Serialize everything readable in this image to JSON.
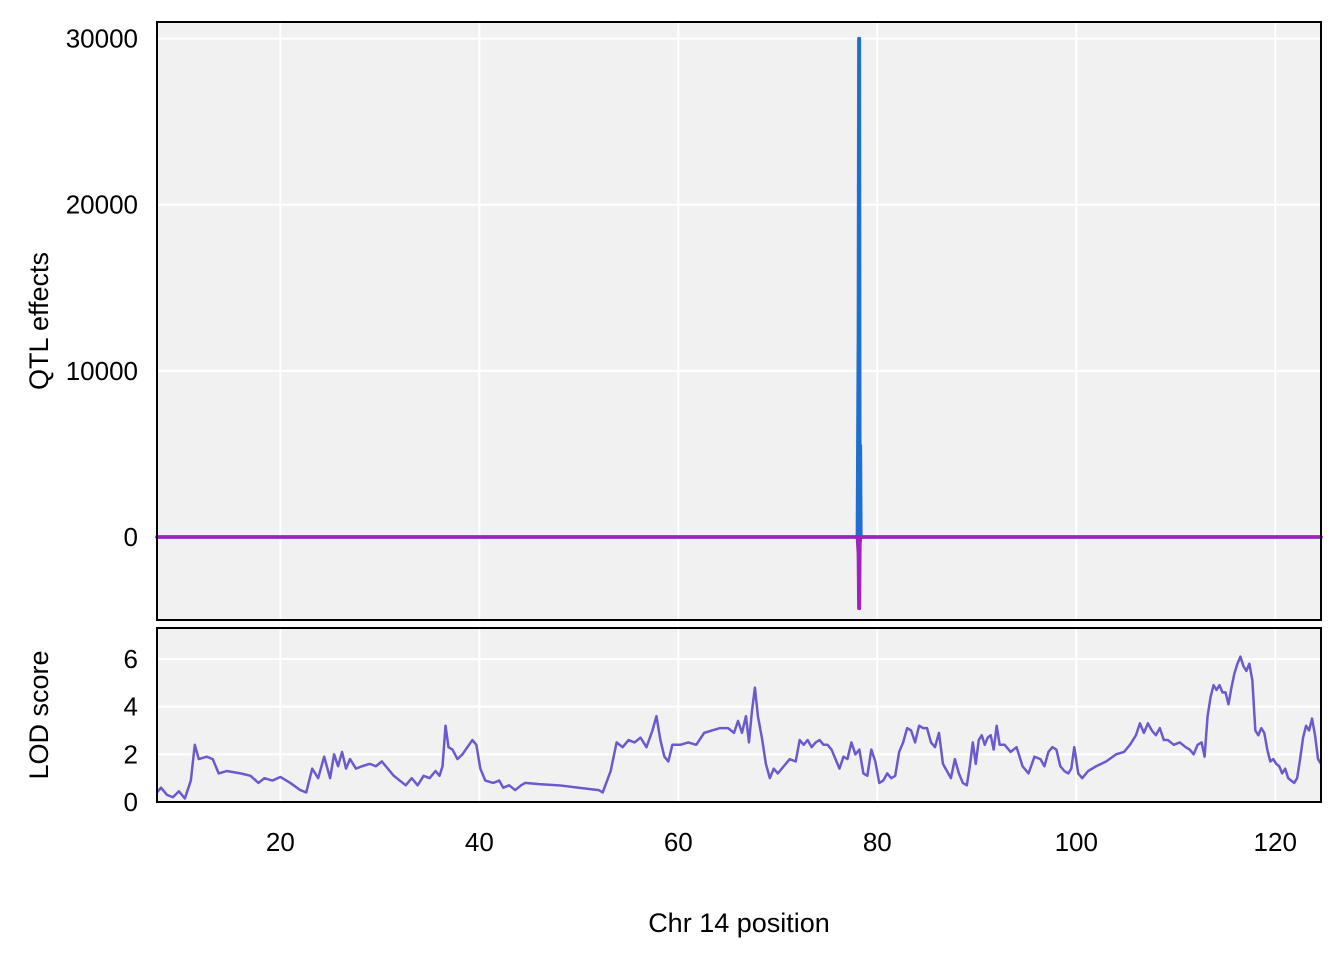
{
  "chart_data": [
    {
      "type": "line",
      "panel": "top",
      "ylabel": "QTL effects",
      "ylim": [
        -5000,
        31000
      ],
      "xlim": [
        7.6,
        124.6
      ],
      "yticks": [
        0,
        10000,
        20000,
        30000
      ],
      "grid": true,
      "series": [
        {
          "color": "#1e6fd0",
          "points": [
            [
              7.6,
              0
            ],
            [
              78.0,
              0
            ],
            [
              78.1,
              12000
            ],
            [
              78.15,
              30000
            ],
            [
              78.2,
              30000
            ],
            [
              78.25,
              0
            ],
            [
              78.3,
              5500
            ],
            [
              78.35,
              0
            ],
            [
              124.6,
              0
            ]
          ]
        },
        {
          "color": "#a020c0",
          "points": [
            [
              7.6,
              0
            ],
            [
              78.0,
              0
            ],
            [
              78.1,
              -1000
            ],
            [
              78.15,
              -4300
            ],
            [
              78.2,
              -4300
            ],
            [
              78.25,
              -500
            ],
            [
              78.3,
              0
            ],
            [
              124.6,
              0
            ]
          ]
        }
      ]
    },
    {
      "type": "line",
      "panel": "bottom",
      "xlabel": "Chr 14 position",
      "ylabel": "LOD score",
      "xlim": [
        7.6,
        124.6
      ],
      "ylim": [
        0,
        7.3
      ],
      "xticks": [
        20,
        40,
        60,
        80,
        100,
        120
      ],
      "yticks": [
        0,
        2,
        4,
        6
      ],
      "grid": true,
      "series": [
        {
          "color": "#6a5acd",
          "points": [
            [
              7.6,
              0.4
            ],
            [
              8.0,
              0.6
            ],
            [
              8.6,
              0.3
            ],
            [
              9.2,
              0.2
            ],
            [
              9.8,
              0.45
            ],
            [
              10.4,
              0.15
            ],
            [
              11.0,
              0.9
            ],
            [
              11.4,
              2.4
            ],
            [
              11.8,
              1.8
            ],
            [
              12.6,
              1.9
            ],
            [
              13.2,
              1.8
            ],
            [
              13.8,
              1.2
            ],
            [
              14.6,
              1.3
            ],
            [
              16.0,
              1.2
            ],
            [
              17.0,
              1.1
            ],
            [
              17.8,
              0.8
            ],
            [
              18.4,
              1.0
            ],
            [
              19.2,
              0.9
            ],
            [
              20.0,
              1.05
            ],
            [
              21.0,
              0.8
            ],
            [
              22.0,
              0.5
            ],
            [
              22.6,
              0.4
            ],
            [
              23.2,
              1.4
            ],
            [
              23.8,
              1.0
            ],
            [
              24.4,
              1.9
            ],
            [
              25.0,
              1.0
            ],
            [
              25.4,
              2.0
            ],
            [
              25.8,
              1.5
            ],
            [
              26.2,
              2.1
            ],
            [
              26.6,
              1.4
            ],
            [
              27.0,
              1.8
            ],
            [
              27.6,
              1.4
            ],
            [
              28.2,
              1.5
            ],
            [
              29.0,
              1.6
            ],
            [
              29.6,
              1.5
            ],
            [
              30.2,
              1.7
            ],
            [
              30.8,
              1.4
            ],
            [
              31.4,
              1.1
            ],
            [
              32.0,
              0.9
            ],
            [
              32.6,
              0.7
            ],
            [
              33.2,
              1.0
            ],
            [
              33.8,
              0.7
            ],
            [
              34.4,
              1.1
            ],
            [
              35.0,
              1.0
            ],
            [
              35.6,
              1.3
            ],
            [
              36.0,
              1.1
            ],
            [
              36.3,
              1.5
            ],
            [
              36.6,
              3.2
            ],
            [
              36.9,
              2.3
            ],
            [
              37.3,
              2.2
            ],
            [
              37.8,
              1.8
            ],
            [
              38.3,
              2.0
            ],
            [
              38.8,
              2.3
            ],
            [
              39.3,
              2.6
            ],
            [
              39.7,
              2.4
            ],
            [
              40.1,
              1.4
            ],
            [
              40.6,
              0.9
            ],
            [
              41.4,
              0.8
            ],
            [
              42.0,
              0.9
            ],
            [
              42.4,
              0.6
            ],
            [
              43.0,
              0.7
            ],
            [
              43.6,
              0.5
            ],
            [
              44.2,
              0.7
            ],
            [
              44.6,
              0.8
            ],
            [
              46.0,
              0.75
            ],
            [
              48.0,
              0.7
            ],
            [
              50.0,
              0.6
            ],
            [
              52.0,
              0.5
            ],
            [
              52.4,
              0.4
            ],
            [
              53.2,
              1.3
            ],
            [
              53.8,
              2.5
            ],
            [
              54.4,
              2.3
            ],
            [
              55.0,
              2.6
            ],
            [
              55.6,
              2.5
            ],
            [
              56.2,
              2.7
            ],
            [
              56.8,
              2.3
            ],
            [
              57.4,
              3.0
            ],
            [
              57.8,
              3.6
            ],
            [
              58.2,
              2.6
            ],
            [
              58.6,
              1.9
            ],
            [
              59.0,
              1.7
            ],
            [
              59.4,
              2.4
            ],
            [
              60.2,
              2.4
            ],
            [
              61.0,
              2.5
            ],
            [
              61.8,
              2.4
            ],
            [
              62.6,
              2.9
            ],
            [
              63.4,
              3.0
            ],
            [
              64.2,
              3.1
            ],
            [
              65.0,
              3.1
            ],
            [
              65.6,
              2.9
            ],
            [
              66.0,
              3.4
            ],
            [
              66.4,
              2.9
            ],
            [
              66.8,
              3.6
            ],
            [
              67.1,
              2.5
            ],
            [
              67.4,
              3.8
            ],
            [
              67.7,
              4.8
            ],
            [
              68.0,
              3.6
            ],
            [
              68.4,
              2.7
            ],
            [
              68.8,
              1.6
            ],
            [
              69.2,
              1.0
            ],
            [
              69.6,
              1.4
            ],
            [
              70.0,
              1.2
            ],
            [
              70.6,
              1.5
            ],
            [
              71.2,
              1.8
            ],
            [
              71.8,
              1.7
            ],
            [
              72.2,
              2.6
            ],
            [
              72.6,
              2.4
            ],
            [
              73.0,
              2.6
            ],
            [
              73.4,
              2.3
            ],
            [
              73.8,
              2.5
            ],
            [
              74.2,
              2.6
            ],
            [
              74.6,
              2.4
            ],
            [
              75.0,
              2.4
            ],
            [
              75.4,
              2.2
            ],
            [
              75.8,
              1.8
            ],
            [
              76.2,
              1.4
            ],
            [
              76.6,
              1.9
            ],
            [
              77.0,
              1.8
            ],
            [
              77.4,
              2.5
            ],
            [
              77.8,
              2.0
            ],
            [
              78.2,
              2.2
            ],
            [
              78.6,
              1.2
            ],
            [
              79.0,
              1.1
            ],
            [
              79.4,
              2.2
            ],
            [
              79.8,
              1.7
            ],
            [
              80.2,
              0.8
            ],
            [
              80.6,
              0.9
            ],
            [
              81.0,
              1.2
            ],
            [
              81.4,
              1.0
            ],
            [
              81.8,
              1.1
            ],
            [
              82.2,
              2.1
            ],
            [
              82.6,
              2.5
            ],
            [
              83.0,
              3.1
            ],
            [
              83.4,
              3.0
            ],
            [
              83.8,
              2.5
            ],
            [
              84.2,
              3.2
            ],
            [
              84.6,
              3.1
            ],
            [
              85.0,
              3.1
            ],
            [
              85.4,
              2.5
            ],
            [
              85.8,
              2.3
            ],
            [
              86.2,
              2.9
            ],
            [
              86.6,
              1.6
            ],
            [
              87.0,
              1.3
            ],
            [
              87.4,
              1.0
            ],
            [
              87.8,
              1.8
            ],
            [
              88.2,
              1.2
            ],
            [
              88.6,
              0.8
            ],
            [
              89.0,
              0.7
            ],
            [
              89.3,
              1.5
            ],
            [
              89.6,
              2.5
            ],
            [
              89.9,
              1.6
            ],
            [
              90.2,
              2.6
            ],
            [
              90.5,
              2.8
            ],
            [
              90.8,
              2.4
            ],
            [
              91.1,
              2.7
            ],
            [
              91.4,
              2.8
            ],
            [
              91.7,
              2.2
            ],
            [
              92.0,
              3.2
            ],
            [
              92.3,
              2.4
            ],
            [
              92.8,
              2.4
            ],
            [
              93.4,
              2.1
            ],
            [
              94.0,
              2.3
            ],
            [
              94.6,
              1.5
            ],
            [
              95.2,
              1.2
            ],
            [
              95.8,
              1.9
            ],
            [
              96.4,
              1.8
            ],
            [
              96.8,
              1.5
            ],
            [
              97.2,
              2.1
            ],
            [
              97.6,
              2.3
            ],
            [
              98.0,
              2.2
            ],
            [
              98.4,
              1.5
            ],
            [
              98.8,
              1.3
            ],
            [
              99.2,
              1.2
            ],
            [
              99.5,
              1.4
            ],
            [
              99.8,
              2.3
            ],
            [
              100.2,
              1.2
            ],
            [
              100.6,
              1.0
            ],
            [
              101.2,
              1.3
            ],
            [
              102.0,
              1.5
            ],
            [
              103.0,
              1.7
            ],
            [
              104.0,
              2.0
            ],
            [
              104.8,
              2.1
            ],
            [
              105.4,
              2.4
            ],
            [
              106.0,
              2.8
            ],
            [
              106.4,
              3.3
            ],
            [
              106.8,
              2.9
            ],
            [
              107.2,
              3.3
            ],
            [
              107.6,
              3.0
            ],
            [
              108.0,
              2.8
            ],
            [
              108.4,
              3.1
            ],
            [
              108.8,
              2.6
            ],
            [
              109.2,
              2.6
            ],
            [
              109.8,
              2.4
            ],
            [
              110.4,
              2.5
            ],
            [
              111.0,
              2.3
            ],
            [
              111.4,
              2.2
            ],
            [
              111.8,
              2.0
            ],
            [
              112.2,
              2.4
            ],
            [
              112.6,
              2.5
            ],
            [
              112.9,
              1.9
            ],
            [
              113.2,
              3.6
            ],
            [
              113.5,
              4.4
            ],
            [
              113.8,
              4.9
            ],
            [
              114.1,
              4.7
            ],
            [
              114.4,
              4.9
            ],
            [
              114.7,
              4.6
            ],
            [
              115.0,
              4.6
            ],
            [
              115.3,
              4.1
            ],
            [
              115.6,
              4.8
            ],
            [
              115.9,
              5.4
            ],
            [
              116.2,
              5.8
            ],
            [
              116.5,
              6.1
            ],
            [
              116.8,
              5.7
            ],
            [
              117.1,
              5.5
            ],
            [
              117.4,
              5.8
            ],
            [
              117.7,
              5.1
            ],
            [
              118.0,
              3.0
            ],
            [
              118.3,
              2.8
            ],
            [
              118.6,
              3.1
            ],
            [
              118.9,
              2.9
            ],
            [
              119.2,
              2.2
            ],
            [
              119.5,
              1.7
            ],
            [
              119.8,
              1.8
            ],
            [
              120.1,
              1.6
            ],
            [
              120.4,
              1.5
            ],
            [
              120.7,
              1.2
            ],
            [
              121.0,
              1.4
            ],
            [
              121.3,
              1.0
            ],
            [
              121.6,
              0.9
            ],
            [
              121.9,
              0.8
            ],
            [
              122.2,
              1.0
            ],
            [
              122.5,
              1.8
            ],
            [
              122.8,
              2.7
            ],
            [
              123.1,
              3.2
            ],
            [
              123.4,
              3.0
            ],
            [
              123.7,
              3.5
            ],
            [
              124.0,
              2.8
            ],
            [
              124.3,
              1.8
            ],
            [
              124.6,
              1.6
            ]
          ]
        }
      ]
    }
  ]
}
